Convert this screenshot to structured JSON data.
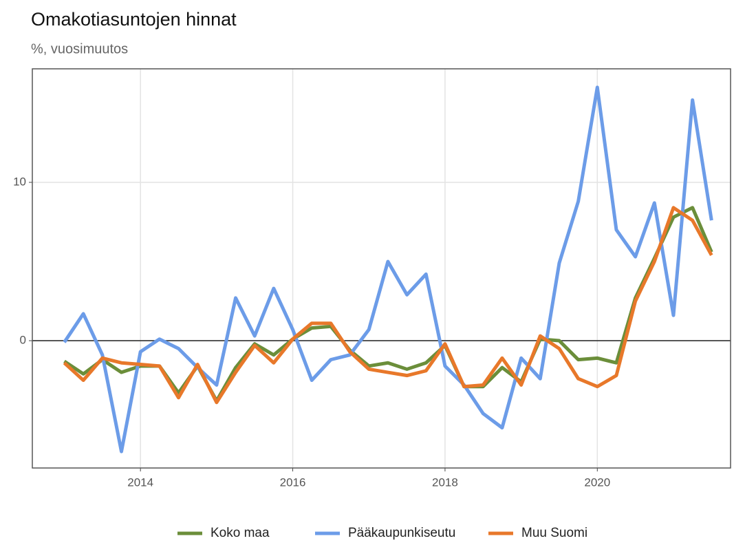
{
  "chart_data": {
    "type": "line",
    "title": "Omakotiasuntojen hinnat",
    "subtitle": "%, vuosimuutos",
    "x": [
      2013,
      2013.25,
      2013.5,
      2013.75,
      2014,
      2014.25,
      2014.5,
      2014.75,
      2015,
      2015.25,
      2015.5,
      2015.75,
      2016,
      2016.25,
      2016.5,
      2016.75,
      2017,
      2017.25,
      2017.5,
      2017.75,
      2018,
      2018.25,
      2018.5,
      2018.75,
      2019,
      2019.25,
      2019.5,
      2019.75,
      2020,
      2020.25,
      2020.5,
      2020.75,
      2021,
      2021.25,
      2021.5
    ],
    "series": [
      {
        "name": "Koko maa",
        "color": "#6b8e3a",
        "values": [
          -1.3,
          -2.1,
          -1.2,
          -2.0,
          -1.6,
          -1.6,
          -3.3,
          -1.6,
          -3.8,
          -1.7,
          -0.2,
          -0.9,
          0.1,
          0.8,
          0.9,
          -0.6,
          -1.6,
          -1.4,
          -1.8,
          -1.4,
          -0.3,
          -2.9,
          -2.9,
          -1.7,
          -2.6,
          0.1,
          0.0,
          -1.2,
          -1.1,
          -1.4,
          2.7,
          5.2,
          7.8,
          8.4,
          5.6
        ]
      },
      {
        "name": "Pääkaupunkiseutu",
        "color": "#6c9ce8",
        "values": [
          -0.1,
          1.7,
          -0.9,
          -7.0,
          -0.7,
          0.1,
          -0.5,
          -1.7,
          -2.8,
          2.7,
          0.3,
          3.3,
          0.7,
          -2.5,
          -1.2,
          -0.9,
          0.7,
          5.0,
          2.9,
          4.2,
          -1.6,
          -2.8,
          -4.6,
          -5.5,
          -1.1,
          -2.4,
          4.9,
          8.8,
          16.0,
          7.0,
          5.3,
          8.7,
          1.6,
          15.2,
          7.6
        ]
      },
      {
        "name": "Muu Suomi",
        "color": "#e8782a",
        "values": [
          -1.4,
          -2.5,
          -1.1,
          -1.4,
          -1.5,
          -1.6,
          -3.6,
          -1.5,
          -3.9,
          -2.0,
          -0.3,
          -1.4,
          0.1,
          1.1,
          1.1,
          -0.7,
          -1.8,
          -2.0,
          -2.2,
          -1.9,
          -0.2,
          -2.9,
          -2.8,
          -1.1,
          -2.8,
          0.3,
          -0.5,
          -2.4,
          -2.9,
          -2.2,
          2.5,
          5.0,
          8.4,
          7.6,
          5.4
        ]
      }
    ],
    "xlim": [
      2012.58,
      2021.75
    ],
    "xticks": [
      2014,
      2016,
      2018,
      2020
    ],
    "ylim": [
      -8.04,
      17.17
    ],
    "yticks": [
      0,
      10
    ],
    "hline": 0,
    "grid": true,
    "legend": "bottom"
  }
}
